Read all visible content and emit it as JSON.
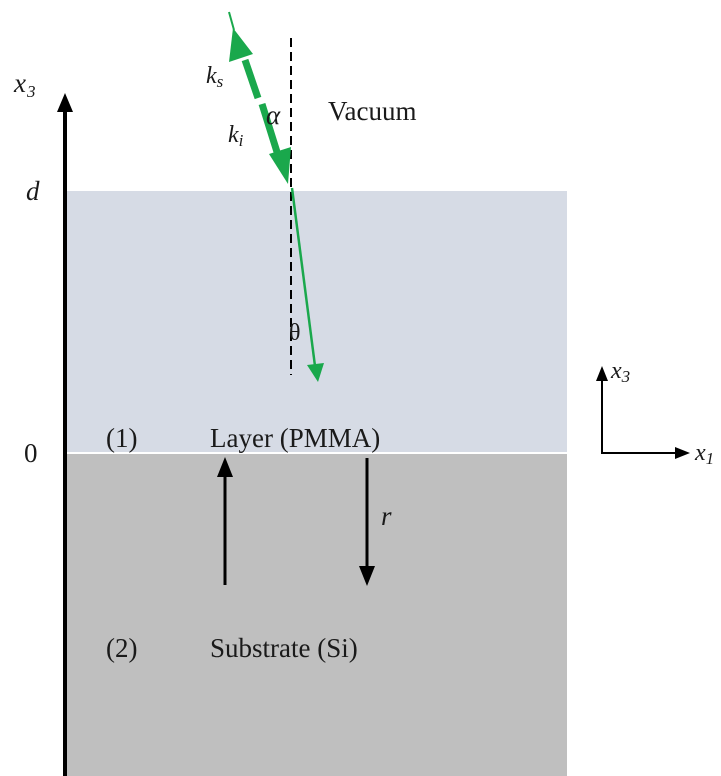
{
  "diagram": {
    "regions": {
      "vacuum": {
        "label": "Vacuum",
        "color": "#ffffff"
      },
      "layer": {
        "index": "(1)",
        "label": "Layer (PMMA)",
        "color": "#d6dbe5"
      },
      "substrate": {
        "index": "(2)",
        "label": "Substrate (Si)",
        "color": "#bfbfbf"
      }
    },
    "axis": {
      "base": "x",
      "sub": "3",
      "tick_top": "d",
      "tick_zero": "0"
    },
    "coord_system": {
      "vertical_base": "x",
      "vertical_sub": "3",
      "horizontal_base": "x",
      "horizontal_sub": "1"
    },
    "waves": {
      "k_s_base": "k",
      "k_s_sub": "s",
      "k_i_base": "k",
      "k_i_sub": "i",
      "alpha": "α",
      "theta": "θ",
      "r": "r"
    },
    "colors": {
      "beam": "#1aa84c",
      "arrow": "#000000"
    }
  }
}
